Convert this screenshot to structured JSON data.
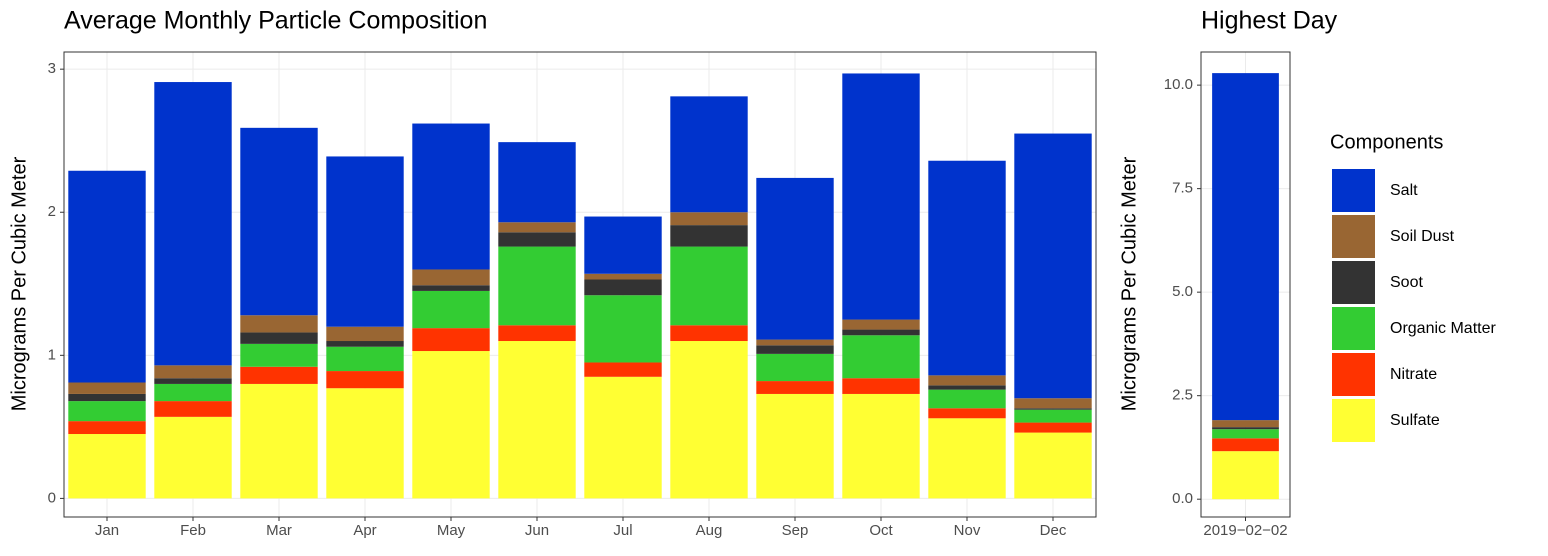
{
  "chart_data": [
    {
      "type": "bar",
      "stacked": true,
      "title": "Average Monthly Particle Composition",
      "y_label": "Micrograms Per Cubic Meter",
      "categories": [
        "Jan",
        "Feb",
        "Mar",
        "Apr",
        "May",
        "Jun",
        "Jul",
        "Aug",
        "Sep",
        "Oct",
        "Nov",
        "Dec"
      ],
      "series": [
        {
          "name": "Salt",
          "color": "#0033cc",
          "values": [
            1.48,
            1.98,
            1.31,
            1.19,
            1.02,
            0.56,
            0.4,
            0.81,
            1.13,
            1.72,
            1.5,
            1.85
          ]
        },
        {
          "name": "Soil Dust",
          "color": "#996633",
          "values": [
            0.08,
            0.09,
            0.12,
            0.1,
            0.11,
            0.07,
            0.04,
            0.09,
            0.04,
            0.07,
            0.07,
            0.07
          ]
        },
        {
          "name": "Soot",
          "color": "#333333",
          "values": [
            0.05,
            0.04,
            0.08,
            0.04,
            0.04,
            0.1,
            0.11,
            0.15,
            0.06,
            0.04,
            0.03,
            0.01
          ]
        },
        {
          "name": "Organic Matter",
          "color": "#33cc33",
          "values": [
            0.14,
            0.12,
            0.16,
            0.17,
            0.26,
            0.55,
            0.47,
            0.55,
            0.19,
            0.3,
            0.13,
            0.09
          ]
        },
        {
          "name": "Nitrate",
          "color": "#ff3300",
          "values": [
            0.09,
            0.11,
            0.12,
            0.12,
            0.16,
            0.11,
            0.1,
            0.11,
            0.09,
            0.11,
            0.07,
            0.07
          ]
        },
        {
          "name": "Sulfate",
          "color": "#ffff33",
          "values": [
            0.45,
            0.57,
            0.8,
            0.77,
            1.03,
            1.1,
            0.85,
            1.1,
            0.73,
            0.73,
            0.56,
            0.46
          ]
        }
      ],
      "ylim": [
        -0.13,
        3.12
      ],
      "yticks": [
        0,
        1,
        2,
        3
      ],
      "grid": true
    },
    {
      "type": "bar",
      "stacked": true,
      "title": "Highest Day",
      "y_label": "Micrograms Per Cubic Meter",
      "categories": [
        "2019−02−02"
      ],
      "series": [
        {
          "name": "Salt",
          "color": "#0033cc",
          "values": [
            8.38
          ]
        },
        {
          "name": "Soil Dust",
          "color": "#996633",
          "values": [
            0.17
          ]
        },
        {
          "name": "Soot",
          "color": "#333333",
          "values": [
            0.05
          ]
        },
        {
          "name": "Organic Matter",
          "color": "#33cc33",
          "values": [
            0.22
          ]
        },
        {
          "name": "Nitrate",
          "color": "#ff3300",
          "values": [
            0.31
          ]
        },
        {
          "name": "Sulfate",
          "color": "#ffff33",
          "values": [
            1.16
          ]
        }
      ],
      "ylim": [
        -0.43,
        10.8
      ],
      "yticks": [
        {
          "value": 0,
          "label": "0.0"
        },
        {
          "value": 2.5,
          "label": "2.5"
        },
        {
          "value": 5,
          "label": "5.0"
        },
        {
          "value": 7.5,
          "label": "7.5"
        },
        {
          "value": 10,
          "label": "10.0"
        }
      ],
      "grid": true,
      "legend_title": "Components"
    }
  ]
}
